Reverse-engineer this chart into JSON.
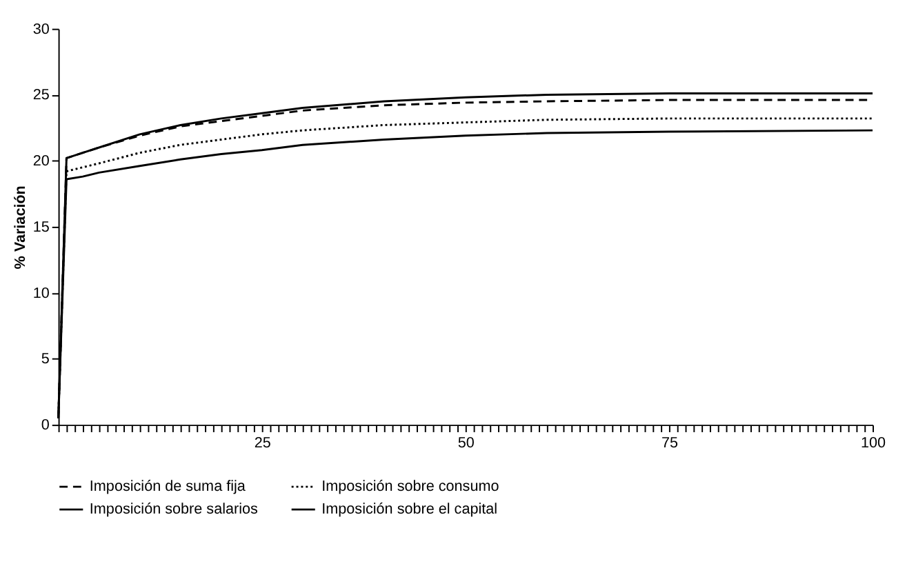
{
  "chart_data": {
    "type": "line",
    "ylabel": "% Variación",
    "x": [
      0,
      1,
      3,
      5,
      10,
      15,
      20,
      25,
      30,
      40,
      50,
      60,
      75,
      100
    ],
    "series": [
      {
        "name": "Imposición de suma fija",
        "color": "#000000",
        "line_style": "dashed",
        "values": [
          0.5,
          20.2,
          20.6,
          21.0,
          21.9,
          22.6,
          23.0,
          23.4,
          23.8,
          24.2,
          24.4,
          24.5,
          24.6,
          24.6
        ]
      },
      {
        "name": "Imposición sobre consumo",
        "color": "#000000",
        "line_style": "dotted",
        "values": [
          0.5,
          19.2,
          19.5,
          19.8,
          20.6,
          21.2,
          21.6,
          22.0,
          22.3,
          22.7,
          22.9,
          23.1,
          23.2,
          23.2
        ]
      },
      {
        "name": "Imposición sobre salarios",
        "color": "#000000",
        "line_style": "solid",
        "values": [
          0.5,
          18.6,
          18.8,
          19.1,
          19.6,
          20.1,
          20.5,
          20.8,
          21.2,
          21.6,
          21.9,
          22.1,
          22.2,
          22.3
        ]
      },
      {
        "name": "Imposición sobre el capital",
        "color": "#000000",
        "line_style": "solid",
        "values": [
          0.5,
          20.2,
          20.6,
          21.0,
          22.0,
          22.7,
          23.2,
          23.6,
          24.0,
          24.5,
          24.8,
          25.0,
          25.1,
          25.1
        ]
      }
    ],
    "xlim": [
      0,
      100
    ],
    "xticks": [
      {
        "value": 0,
        "label": null
      },
      {
        "value": 1,
        "label": null
      },
      {
        "value": 2,
        "label": null
      },
      {
        "value": 3,
        "label": null
      },
      {
        "value": 4,
        "label": null
      },
      {
        "value": 5,
        "label": null
      },
      {
        "value": 6,
        "label": null
      },
      {
        "value": 7,
        "label": null
      },
      {
        "value": 8,
        "label": null
      },
      {
        "value": 9,
        "label": null
      },
      {
        "value": 10,
        "label": null
      },
      {
        "value": 11,
        "label": null
      },
      {
        "value": 12,
        "label": null
      },
      {
        "value": 13,
        "label": null
      },
      {
        "value": 14,
        "label": null
      },
      {
        "value": 15,
        "label": null
      },
      {
        "value": 16,
        "label": null
      },
      {
        "value": 17,
        "label": null
      },
      {
        "value": 18,
        "label": null
      },
      {
        "value": 19,
        "label": null
      },
      {
        "value": 20,
        "label": null
      },
      {
        "value": 21,
        "label": null
      },
      {
        "value": 22,
        "label": null
      },
      {
        "value": 23,
        "label": null
      },
      {
        "value": 24,
        "label": null
      },
      25,
      {
        "value": 26,
        "label": null
      },
      {
        "value": 27,
        "label": null
      },
      {
        "value": 28,
        "label": null
      },
      {
        "value": 29,
        "label": null
      },
      {
        "value": 30,
        "label": null
      },
      {
        "value": 31,
        "label": null
      },
      {
        "value": 32,
        "label": null
      },
      {
        "value": 33,
        "label": null
      },
      {
        "value": 34,
        "label": null
      },
      {
        "value": 35,
        "label": null
      },
      {
        "value": 36,
        "label": null
      },
      {
        "value": 37,
        "label": null
      },
      {
        "value": 38,
        "label": null
      },
      {
        "value": 39,
        "label": null
      },
      {
        "value": 40,
        "label": null
      },
      {
        "value": 41,
        "label": null
      },
      {
        "value": 42,
        "label": null
      },
      {
        "value": 43,
        "label": null
      },
      {
        "value": 44,
        "label": null
      },
      {
        "value": 45,
        "label": null
      },
      {
        "value": 46,
        "label": null
      },
      {
        "value": 47,
        "label": null
      },
      {
        "value": 48,
        "label": null
      },
      {
        "value": 49,
        "label": null
      },
      50,
      {
        "value": 51,
        "label": null
      },
      {
        "value": 52,
        "label": null
      },
      {
        "value": 53,
        "label": null
      },
      {
        "value": 54,
        "label": null
      },
      {
        "value": 55,
        "label": null
      },
      {
        "value": 56,
        "label": null
      },
      {
        "value": 57,
        "label": null
      },
      {
        "value": 58,
        "label": null
      },
      {
        "value": 59,
        "label": null
      },
      {
        "value": 60,
        "label": null
      },
      {
        "value": 61,
        "label": null
      },
      {
        "value": 62,
        "label": null
      },
      {
        "value": 63,
        "label": null
      },
      {
        "value": 64,
        "label": null
      },
      {
        "value": 65,
        "label": null
      },
      {
        "value": 66,
        "label": null
      },
      {
        "value": 67,
        "label": null
      },
      {
        "value": 68,
        "label": null
      },
      {
        "value": 69,
        "label": null
      },
      {
        "value": 70,
        "label": null
      },
      {
        "value": 71,
        "label": null
      },
      {
        "value": 72,
        "label": null
      },
      {
        "value": 73,
        "label": null
      },
      {
        "value": 74,
        "label": null
      },
      75,
      {
        "value": 76,
        "label": null
      },
      {
        "value": 77,
        "label": null
      },
      {
        "value": 78,
        "label": null
      },
      {
        "value": 79,
        "label": null
      },
      {
        "value": 80,
        "label": null
      },
      {
        "value": 81,
        "label": null
      },
      {
        "value": 82,
        "label": null
      },
      {
        "value": 83,
        "label": null
      },
      {
        "value": 84,
        "label": null
      },
      {
        "value": 85,
        "label": null
      },
      {
        "value": 86,
        "label": null
      },
      {
        "value": 87,
        "label": null
      },
      {
        "value": 88,
        "label": null
      },
      {
        "value": 89,
        "label": null
      },
      {
        "value": 90,
        "label": null
      },
      {
        "value": 91,
        "label": null
      },
      {
        "value": 92,
        "label": null
      },
      {
        "value": 93,
        "label": null
      },
      {
        "value": 94,
        "label": null
      },
      {
        "value": 95,
        "label": null
      },
      {
        "value": 96,
        "label": null
      },
      {
        "value": 97,
        "label": null
      },
      {
        "value": 98,
        "label": null
      },
      {
        "value": 99,
        "label": null
      },
      100
    ],
    "ylim": [
      0,
      30
    ],
    "yticks": [
      0,
      5,
      10,
      15,
      20,
      25,
      30
    ],
    "grid": false,
    "legend": "bottom",
    "marker": "none"
  }
}
